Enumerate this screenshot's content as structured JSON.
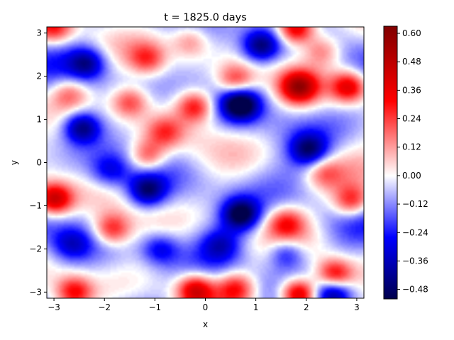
{
  "chart_data": {
    "type": "heatmap",
    "title": "t = 1825.0 days",
    "xlabel": "x",
    "ylabel": "y",
    "xlim": [
      -3.1416,
      3.1416
    ],
    "ylim": [
      -3.1416,
      3.1416
    ],
    "x_ticks": [
      -3,
      -2,
      -1,
      0,
      1,
      2,
      3
    ],
    "y_ticks": [
      -3,
      -2,
      -1,
      0,
      1,
      2,
      3
    ],
    "x_tick_labels": [
      "−3",
      "−2",
      "−1",
      "0",
      "1",
      "2",
      "3"
    ],
    "y_tick_labels": [
      "−3",
      "−2",
      "−1",
      "0",
      "1",
      "2",
      "3"
    ],
    "colormap": "seismic",
    "colorbar": {
      "range": [
        -0.52,
        0.63
      ],
      "ticks": [
        -0.48,
        -0.36,
        -0.24,
        -0.12,
        0.0,
        0.12,
        0.24,
        0.36,
        0.48,
        0.6
      ],
      "tick_labels": [
        "−0.48",
        "−0.36",
        "−0.24",
        "−0.12",
        "0.00",
        "0.12",
        "0.24",
        "0.36",
        "0.48",
        "0.60"
      ]
    },
    "grid": false,
    "features": [
      {
        "x": -2.35,
        "y": 2.3,
        "value": -0.33
      },
      {
        "x": -2.45,
        "y": 0.82,
        "value": -0.42
      },
      {
        "x": -3.0,
        "y": -0.85,
        "value": 0.5
      },
      {
        "x": -1.85,
        "y": -1.55,
        "value": 0.34
      },
      {
        "x": -1.5,
        "y": 1.4,
        "value": 0.3
      },
      {
        "x": -1.15,
        "y": -0.65,
        "value": -0.38
      },
      {
        "x": -1.15,
        "y": 0.15,
        "value": 0.3
      },
      {
        "x": -0.8,
        "y": 0.7,
        "value": 0.24
      },
      {
        "x": -0.9,
        "y": -2.0,
        "value": -0.25
      },
      {
        "x": -1.15,
        "y": 2.4,
        "value": 0.26
      },
      {
        "x": -0.3,
        "y": 2.8,
        "value": 0.2
      },
      {
        "x": -0.2,
        "y": 1.3,
        "value": 0.38
      },
      {
        "x": 0.6,
        "y": 1.9,
        "value": 0.3
      },
      {
        "x": 0.7,
        "y": 1.35,
        "value": -0.5
      },
      {
        "x": 1.1,
        "y": 2.7,
        "value": -0.4
      },
      {
        "x": 0.7,
        "y": -1.2,
        "value": -0.48
      },
      {
        "x": -0.2,
        "y": -2.95,
        "value": 0.45
      },
      {
        "x": 0.6,
        "y": -2.9,
        "value": 0.32
      },
      {
        "x": 1.85,
        "y": -3.05,
        "value": 0.6
      },
      {
        "x": 1.85,
        "y": 1.75,
        "value": 0.5
      },
      {
        "x": 1.8,
        "y": 3.1,
        "value": 0.5
      },
      {
        "x": 2.85,
        "y": 1.75,
        "value": 0.45
      },
      {
        "x": 2.05,
        "y": 0.3,
        "value": -0.36
      },
      {
        "x": 2.35,
        "y": -0.25,
        "value": 0.2
      },
      {
        "x": 2.9,
        "y": -0.9,
        "value": 0.35
      },
      {
        "x": 1.6,
        "y": -1.4,
        "value": 0.28
      },
      {
        "x": 1.6,
        "y": -2.1,
        "value": -0.28
      },
      {
        "x": 2.55,
        "y": -2.6,
        "value": 0.42
      },
      {
        "x": 2.55,
        "y": -3.05,
        "value": -0.38
      },
      {
        "x": -2.6,
        "y": -3.0,
        "value": 0.35
      },
      {
        "x": -3.0,
        "y": 3.1,
        "value": 0.3
      },
      {
        "x": 2.3,
        "y": 2.6,
        "value": 0.24
      },
      {
        "x": -2.65,
        "y": -1.9,
        "value": -0.2
      },
      {
        "x": -1.9,
        "y": -0.2,
        "value": -0.2
      },
      {
        "x": 0.3,
        "y": -1.9,
        "value": -0.22
      },
      {
        "x": -2.7,
        "y": 1.6,
        "value": 0.22
      }
    ]
  }
}
